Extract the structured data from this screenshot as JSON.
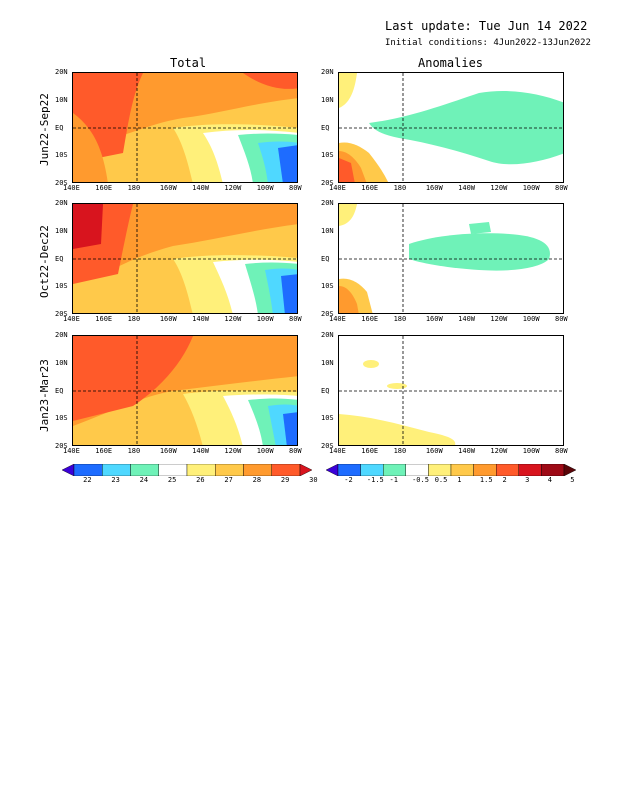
{
  "header": {
    "last_update": "Last update: Tue Jun 14 2022",
    "initial_conditions": "Initial conditions: 4Jun2022-13Jun2022"
  },
  "columns": [
    "Total",
    "Anomalies"
  ],
  "rows": [
    "Jun22-Sep22",
    "Oct22-Dec22",
    "Jan23-Mar23"
  ],
  "axes": {
    "lon_ticks": [
      "140E",
      "160E",
      "180",
      "160W",
      "140W",
      "120W",
      "100W",
      "80W"
    ],
    "lat_ticks": [
      "20N",
      "10N",
      "EQ",
      "10S",
      "20S"
    ]
  },
  "colorbars": {
    "total": {
      "labels": [
        "22",
        "23",
        "24",
        "25",
        "26",
        "27",
        "28",
        "29",
        "30"
      ],
      "colors": [
        "#3b00d8",
        "#1e6cff",
        "#4fd8ff",
        "#6ff2b8",
        "#ffffff",
        "#fff07a",
        "#ffc94a",
        "#ff9a2e",
        "#ff5a2a",
        "#d8141e"
      ]
    },
    "anomalies": {
      "labels": [
        "-2",
        "-1.5",
        "-1",
        "-0.5",
        "0.5",
        "1",
        "1.5",
        "2",
        "3",
        "4",
        "5"
      ],
      "colors": [
        "#3b00d8",
        "#1e6cff",
        "#4fd8ff",
        "#6ff2b8",
        "#ffffff",
        "#fff07a",
        "#ffc94a",
        "#ff9a2e",
        "#ff5a2a",
        "#d8141e",
        "#9e0a16",
        "#5a0508"
      ]
    }
  }
}
